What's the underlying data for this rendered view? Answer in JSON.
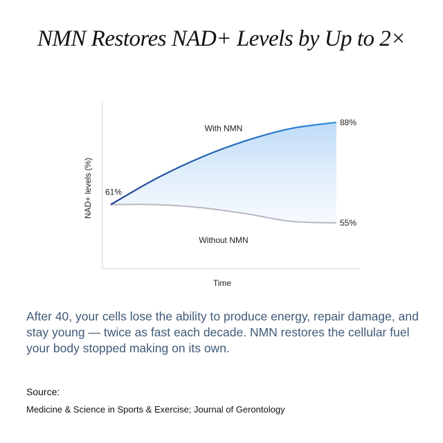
{
  "title": "NMN Restores NAD+ Levels by Up to 2×",
  "chart_data": {
    "type": "line",
    "xlabel": "Time",
    "ylabel": "NAD+ levels (%)",
    "x": [
      0,
      0.2,
      0.4,
      0.6,
      0.8,
      1.0
    ],
    "series": [
      {
        "name": "With NMN",
        "values": [
          61,
          69.5,
          76.5,
          82,
          86,
          88
        ],
        "start_label": "61%",
        "end_label": "88%"
      },
      {
        "name": "Without NMN",
        "values": [
          61,
          61,
          60,
          58,
          55.5,
          55
        ],
        "end_label": "55%"
      }
    ],
    "ylim": [
      40,
      95
    ],
    "grid": false,
    "legend": "inline"
  },
  "body_text": "After 40, your cells lose the ability to produce energy, repair damage, and stay young — twice as fast each decade. NMN restores the cellular fuel your body stopped making on its own.",
  "source": {
    "label": "Source:",
    "text": "Medicine & Science in Sports & Exercise; Journal of Gerontology"
  },
  "colors": {
    "with_line": "#2a7fd0",
    "without_line": "#b8b8c2",
    "fill": "#b9d9f7",
    "axis": "#cfcfcf"
  }
}
